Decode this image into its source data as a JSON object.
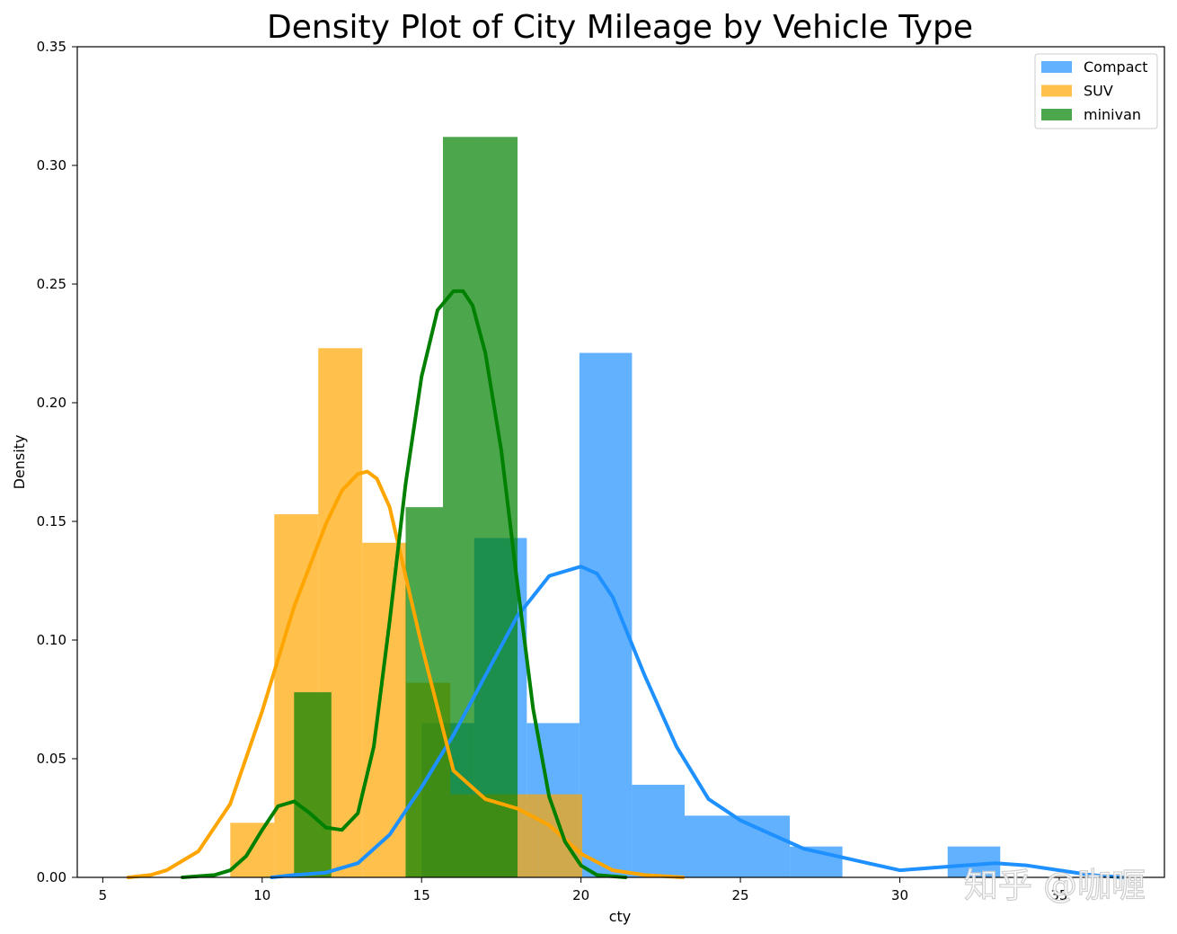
{
  "chart_data": {
    "type": "histogram-density",
    "title": "Density Plot of City Mileage by Vehicle Type",
    "xlabel": "cty",
    "ylabel": "Density",
    "xlim": [
      4.2,
      38.3
    ],
    "ylim": [
      0,
      0.35
    ],
    "xticks": [
      5,
      10,
      15,
      20,
      25,
      30,
      35
    ],
    "yticks": [
      0.0,
      0.05,
      0.1,
      0.15,
      0.2,
      0.25,
      0.3,
      0.35
    ],
    "ytick_labels": [
      "0.00",
      "0.05",
      "0.10",
      "0.15",
      "0.20",
      "0.25",
      "0.30",
      "0.35"
    ],
    "legend_position": "top-right",
    "grid": false,
    "series": [
      {
        "name": "Compact",
        "color": "#1e90ff",
        "hist_color": "#62b0fc",
        "bins": [
          {
            "x0": 15.0,
            "x1": 16.65,
            "h": 0.065
          },
          {
            "x0": 16.65,
            "x1": 18.3,
            "h": 0.143
          },
          {
            "x0": 18.3,
            "x1": 19.95,
            "h": 0.065
          },
          {
            "x0": 19.95,
            "x1": 21.6,
            "h": 0.221
          },
          {
            "x0": 21.6,
            "x1": 23.25,
            "h": 0.039
          },
          {
            "x0": 23.25,
            "x1": 24.9,
            "h": 0.026
          },
          {
            "x0": 24.9,
            "x1": 26.55,
            "h": 0.026
          },
          {
            "x0": 26.55,
            "x1": 28.2,
            "h": 0.013
          },
          {
            "x0": 31.5,
            "x1": 33.15,
            "h": 0.013
          }
        ],
        "kde_x": [
          10.3,
          11,
          12,
          13,
          14,
          15,
          16,
          17,
          18,
          19,
          20,
          20.5,
          21,
          22,
          23,
          24,
          25,
          26,
          27,
          28,
          29,
          30,
          31,
          32,
          33,
          34,
          35,
          36,
          37
        ],
        "kde_y": [
          0.0,
          0.001,
          0.002,
          0.006,
          0.018,
          0.038,
          0.06,
          0.085,
          0.11,
          0.127,
          0.131,
          0.128,
          0.118,
          0.085,
          0.055,
          0.033,
          0.024,
          0.018,
          0.012,
          0.009,
          0.006,
          0.003,
          0.004,
          0.005,
          0.006,
          0.005,
          0.003,
          0.001,
          0.0
        ]
      },
      {
        "name": "SUV",
        "color": "#ffa500",
        "hist_color": "#fdc14f",
        "bins": [
          {
            "x0": 9.0,
            "x1": 10.38,
            "h": 0.023
          },
          {
            "x0": 10.38,
            "x1": 11.76,
            "h": 0.153
          },
          {
            "x0": 11.76,
            "x1": 13.14,
            "h": 0.223
          },
          {
            "x0": 13.14,
            "x1": 14.52,
            "h": 0.141
          },
          {
            "x0": 14.52,
            "x1": 15.9,
            "h": 0.082
          },
          {
            "x0": 15.9,
            "x1": 17.28,
            "h": 0.035
          },
          {
            "x0": 17.28,
            "x1": 18.66,
            "h": 0.035
          },
          {
            "x0": 18.66,
            "x1": 20.04,
            "h": 0.035
          }
        ],
        "kde_x": [
          5.8,
          6.5,
          7,
          8,
          9,
          10,
          11,
          12,
          12.5,
          13,
          13.3,
          13.6,
          14,
          15,
          16,
          17,
          18,
          19,
          20,
          21,
          22,
          23.2
        ],
        "kde_y": [
          0.0,
          0.001,
          0.003,
          0.011,
          0.031,
          0.07,
          0.114,
          0.149,
          0.163,
          0.17,
          0.171,
          0.168,
          0.156,
          0.098,
          0.045,
          0.033,
          0.029,
          0.022,
          0.01,
          0.003,
          0.001,
          0.0
        ]
      },
      {
        "name": "minivan",
        "color": "#008000",
        "hist_color": "#4ea64e",
        "bins": [
          {
            "x0": 11.0,
            "x1": 12.17,
            "h": 0.078
          },
          {
            "x0": 14.5,
            "x1": 15.67,
            "h": 0.156
          },
          {
            "x0": 15.67,
            "x1": 16.84,
            "h": 0.312
          },
          {
            "x0": 16.84,
            "x1": 18.01,
            "h": 0.312
          }
        ],
        "kde_x": [
          7.5,
          8.5,
          9,
          9.5,
          10,
          10.5,
          11,
          11.5,
          12,
          12.5,
          13,
          13.5,
          14,
          14.5,
          15,
          15.5,
          16,
          16.3,
          16.6,
          17,
          17.5,
          18,
          18.5,
          19,
          19.5,
          20,
          20.5,
          21.4
        ],
        "kde_y": [
          0.0,
          0.001,
          0.003,
          0.009,
          0.02,
          0.03,
          0.032,
          0.027,
          0.021,
          0.02,
          0.027,
          0.055,
          0.108,
          0.166,
          0.211,
          0.239,
          0.247,
          0.247,
          0.241,
          0.221,
          0.18,
          0.124,
          0.071,
          0.034,
          0.015,
          0.005,
          0.001,
          0.0
        ]
      }
    ]
  },
  "watermark": {
    "text": "知乎 @咖喱"
  }
}
